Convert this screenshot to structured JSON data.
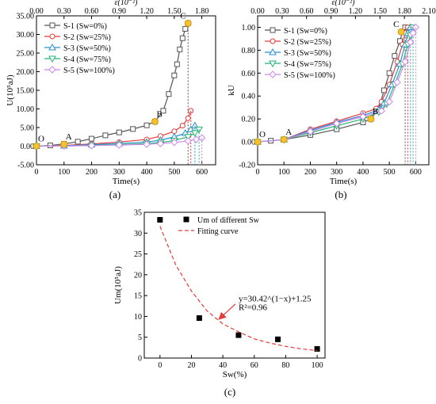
{
  "chart_data": [
    {
      "panel_label": "(a)",
      "type": "line",
      "xlabel": "Time(s)",
      "ylabel": "U(10⁵aJ)",
      "top_xlabel": "ε(10⁻²)",
      "xlim": [
        0,
        650
      ],
      "ylim": [
        -5,
        35
      ],
      "xticks": [
        "0",
        "100",
        "200",
        "300",
        "400",
        "500",
        "600"
      ],
      "yticks": [
        "-5.00",
        "0.00",
        "5.00",
        "10.00",
        "15.00",
        "20.00",
        "25.00",
        "30.00",
        "35.00"
      ],
      "top_ticks": [
        "0.00",
        "0.30",
        "0.60",
        "0.90",
        "1.20",
        "1.50",
        "1.80"
      ],
      "grid": false,
      "legend_position": "top-left",
      "series": [
        {
          "name": "S-1 (Sw=0%)",
          "color": "#555555",
          "marker": "square",
          "x": [
            0,
            50,
            100,
            150,
            200,
            250,
            300,
            350,
            400,
            430,
            460,
            480,
            500,
            510,
            520,
            530,
            540,
            550
          ],
          "y": [
            0,
            0.2,
            0.6,
            1.2,
            2.0,
            2.9,
            3.7,
            4.6,
            5.6,
            6.6,
            9.5,
            14,
            19,
            22,
            26,
            29,
            31.5,
            33
          ]
        },
        {
          "name": "S-2 (Sw=25%)",
          "color": "#e83a3a",
          "marker": "circle",
          "x": [
            0,
            100,
            200,
            300,
            400,
            450,
            500,
            530,
            550,
            560
          ],
          "y": [
            0,
            0.2,
            0.6,
            1.1,
            1.8,
            2.7,
            4.0,
            5.5,
            7.5,
            9.5
          ]
        },
        {
          "name": "S-3 (Sw=50%)",
          "color": "#2a8fd0",
          "marker": "triangle",
          "x": [
            0,
            100,
            200,
            300,
            400,
            450,
            500,
            540,
            560,
            575
          ],
          "y": [
            0,
            0.1,
            0.4,
            0.7,
            1.1,
            1.6,
            2.5,
            3.5,
            4.5,
            5.5
          ]
        },
        {
          "name": "S-4 (Sw=75%)",
          "color": "#22b573",
          "marker": "triangle-down",
          "x": [
            0,
            100,
            200,
            300,
            400,
            450,
            500,
            550,
            575,
            590
          ],
          "y": [
            0,
            0.05,
            0.2,
            0.4,
            0.7,
            1.0,
            1.5,
            2.5,
            3.5,
            4.5
          ]
        },
        {
          "name": "S-5 (Sw=100%)",
          "color": "#cc88ee",
          "marker": "diamond",
          "x": [
            0,
            100,
            200,
            300,
            400,
            450,
            500,
            550,
            580,
            600
          ],
          "y": [
            0,
            0.05,
            0.15,
            0.3,
            0.5,
            0.7,
            1.0,
            1.4,
            1.8,
            2.2
          ]
        }
      ],
      "annotations": [
        {
          "text": "O",
          "x": 0,
          "y": 0
        },
        {
          "text": "A",
          "x": 100,
          "y": 0.5
        },
        {
          "text": "B",
          "x": 430,
          "y": 6.6
        },
        {
          "text": "C",
          "x": 550,
          "y": 33
        }
      ]
    },
    {
      "panel_label": "(b)",
      "type": "line",
      "xlabel": "Time(s)",
      "ylabel": "kU",
      "top_xlabel": "ε(10⁻²)",
      "xlim": [
        0,
        650
      ],
      "ylim": [
        -0.2,
        1.1
      ],
      "xticks": [
        "0",
        "100",
        "200",
        "300",
        "400",
        "500",
        "600"
      ],
      "yticks": [
        "-0.20",
        "0.00",
        "0.20",
        "0.40",
        "0.60",
        "0.80",
        "1.00"
      ],
      "top_ticks": [
        "0.00",
        "0.30",
        "0.60",
        "0.90",
        "1.20",
        "1.50",
        "1.80",
        "2.10"
      ],
      "grid": false,
      "legend_position": "top-left",
      "series": [
        {
          "name": "S-1 (Sw=0%)",
          "color": "#555555",
          "marker": "square",
          "x": [
            0,
            50,
            100,
            200,
            300,
            400,
            430,
            460,
            480,
            500,
            520,
            540,
            550,
            560
          ],
          "y": [
            0,
            0.01,
            0.02,
            0.06,
            0.11,
            0.17,
            0.2,
            0.29,
            0.45,
            0.6,
            0.75,
            0.88,
            0.96,
            1.0
          ]
        },
        {
          "name": "S-2 (Sw=25%)",
          "color": "#e83a3a",
          "marker": "circle",
          "x": [
            0,
            100,
            200,
            300,
            400,
            450,
            470,
            500,
            530,
            550,
            560,
            570
          ],
          "y": [
            0,
            0.02,
            0.11,
            0.18,
            0.25,
            0.29,
            0.35,
            0.5,
            0.7,
            0.85,
            0.95,
            1.0
          ]
        },
        {
          "name": "S-3 (Sw=50%)",
          "color": "#2a8fd0",
          "marker": "triangle",
          "x": [
            0,
            100,
            200,
            300,
            400,
            460,
            480,
            510,
            540,
            560,
            570,
            580
          ],
          "y": [
            0,
            0.02,
            0.1,
            0.17,
            0.23,
            0.28,
            0.34,
            0.5,
            0.68,
            0.85,
            0.95,
            1.0
          ]
        },
        {
          "name": "S-4 (Sw=75%)",
          "color": "#22b573",
          "marker": "triangle-down",
          "x": [
            0,
            100,
            200,
            300,
            400,
            460,
            490,
            520,
            550,
            570,
            580,
            590
          ],
          "y": [
            0,
            0.02,
            0.08,
            0.14,
            0.2,
            0.26,
            0.33,
            0.5,
            0.68,
            0.85,
            0.93,
            1.0
          ]
        },
        {
          "name": "S-5 (Sw=100%)",
          "color": "#cc88ee",
          "marker": "diamond",
          "x": [
            0,
            100,
            200,
            300,
            400,
            470,
            500,
            530,
            560,
            580,
            590,
            600
          ],
          "y": [
            0,
            0.02,
            0.09,
            0.16,
            0.22,
            0.27,
            0.35,
            0.52,
            0.7,
            0.87,
            0.95,
            1.0
          ]
        }
      ],
      "annotations": [
        {
          "text": "O",
          "x": 0,
          "y": 0
        },
        {
          "text": "A",
          "x": 100,
          "y": 0.02
        },
        {
          "text": "B",
          "x": 430,
          "y": 0.2
        },
        {
          "text": "C",
          "x": 545,
          "y": 0.96
        }
      ]
    },
    {
      "panel_label": "(c)",
      "type": "scatter",
      "xlabel": "Sw(%)",
      "ylabel": "Um(10⁵aJ)",
      "xlim": [
        -10,
        105
      ],
      "ylim": [
        0,
        35
      ],
      "xticks": [
        "0",
        "20",
        "40",
        "60",
        "80",
        "100"
      ],
      "yticks": [
        "0",
        "5",
        "10",
        "15",
        "20",
        "25",
        "30",
        "35"
      ],
      "grid": false,
      "legend_position": "top-right",
      "series": [
        {
          "name": "Um of different Sw",
          "color": "#000000",
          "marker": "square",
          "x": [
            0,
            25,
            50,
            75,
            100
          ],
          "y": [
            33.2,
            9.6,
            5.5,
            4.5,
            2.2
          ]
        },
        {
          "name": "Fitting curve",
          "color": "#e83a3a",
          "style": "dashed",
          "formula": "y=30.42^(1-x)+1.25",
          "x": [
            0,
            10,
            20,
            30,
            40,
            50,
            60,
            70,
            80,
            90,
            100
          ],
          "y": [
            31.67,
            22.4,
            16.1,
            11.3,
            8.2,
            6.3,
            4.6,
            3.6,
            2.8,
            2.2,
            1.8
          ]
        }
      ],
      "annotations": [
        {
          "text": "y=30.42^(1−x)+1.25",
          "x": 50,
          "y": 13.6
        },
        {
          "text": "R²=0.96",
          "x": 50,
          "y": 11.5
        }
      ]
    }
  ]
}
